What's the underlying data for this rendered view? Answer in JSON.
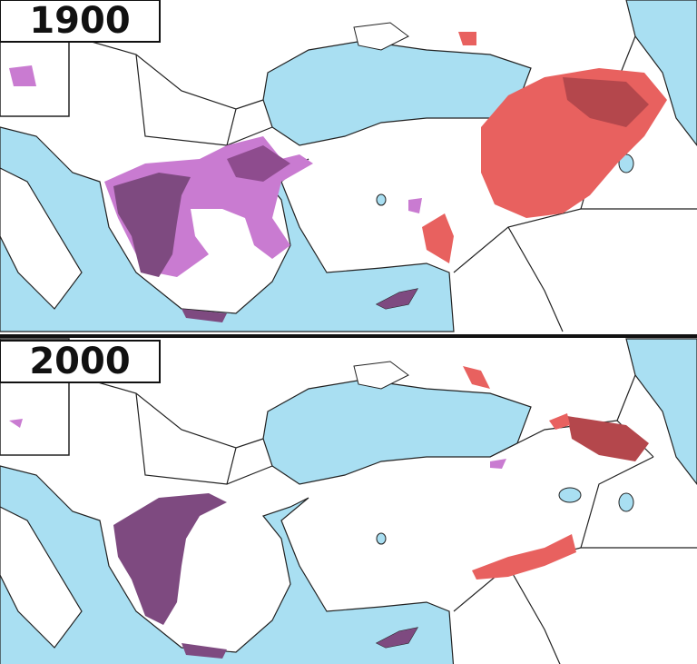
{
  "panels": [
    {
      "label": "1900"
    },
    {
      "label": "2000"
    }
  ]
}
